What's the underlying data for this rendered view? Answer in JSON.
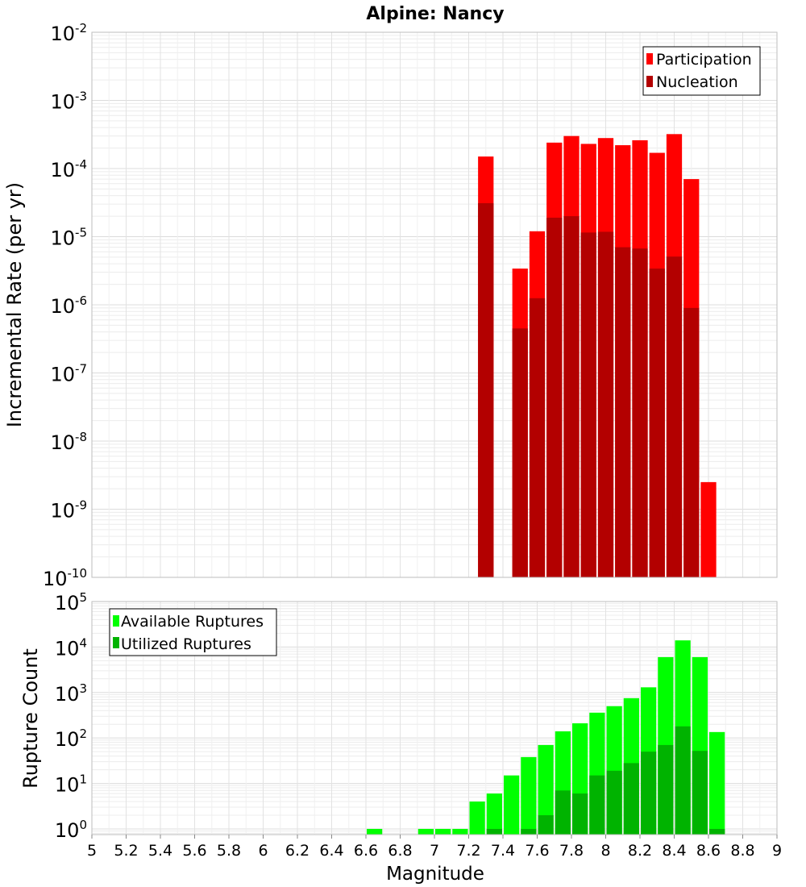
{
  "chart_data": [
    {
      "type": "bar",
      "title": "Alpine: Nancy",
      "ylabel": "Incremental Rate (per yr)",
      "y_scale": "log",
      "ylim": [
        1e-10,
        0.01
      ],
      "y_ticks": [
        {
          "base": "10",
          "exp": "-2"
        },
        {
          "base": "10",
          "exp": "-3"
        },
        {
          "base": "10",
          "exp": "-4"
        },
        {
          "base": "10",
          "exp": "-5"
        },
        {
          "base": "10",
          "exp": "-6"
        },
        {
          "base": "10",
          "exp": "-7"
        },
        {
          "base": "10",
          "exp": "-8"
        },
        {
          "base": "10",
          "exp": "-9"
        },
        {
          "base": "10",
          "exp": "-10"
        }
      ],
      "grid": true,
      "legend_position": "top-right",
      "x": [
        7.3,
        7.5,
        7.6,
        7.7,
        7.8,
        7.9,
        8.0,
        8.1,
        8.2,
        8.3,
        8.4,
        8.5,
        8.6
      ],
      "series": [
        {
          "name": "Participation",
          "color": "#ff0000",
          "values": [
            0.00015,
            3.4e-06,
            1.2e-05,
            0.00024,
            0.0003,
            0.00023,
            0.00028,
            0.00022,
            0.00026,
            0.00017,
            0.00032,
            7e-05,
            2.5e-09
          ]
        },
        {
          "name": "Nucleation",
          "color": "#b30000",
          "values": [
            3.1e-05,
            4.5e-07,
            1.25e-06,
            1.9e-05,
            2e-05,
            1.15e-05,
            1.18e-05,
            7e-06,
            6.7e-06,
            3.4e-06,
            5.1e-06,
            9e-07,
            null
          ]
        }
      ]
    },
    {
      "type": "bar",
      "ylabel": "Rupture Count",
      "xlabel": "Magnitude",
      "y_scale": "log",
      "ylim": [
        0.75,
        100000
      ],
      "y_ticks": [
        {
          "base": "10",
          "exp": "5"
        },
        {
          "base": "10",
          "exp": "4"
        },
        {
          "base": "10",
          "exp": "3"
        },
        {
          "base": "10",
          "exp": "2"
        },
        {
          "base": "10",
          "exp": "1"
        },
        {
          "base": "10",
          "exp": "0"
        }
      ],
      "xlim": [
        5,
        9
      ],
      "x_ticks": [
        "5",
        "5.2",
        "5.4",
        "5.6",
        "5.8",
        "6",
        "6.2",
        "6.4",
        "6.6",
        "6.8",
        "7",
        "7.2",
        "7.4",
        "7.6",
        "7.8",
        "8",
        "8.2",
        "8.4",
        "8.6",
        "8.8",
        "9"
      ],
      "grid": true,
      "legend_position": "top-left",
      "x": [
        6.65,
        6.95,
        7.05,
        7.15,
        7.25,
        7.35,
        7.45,
        7.55,
        7.65,
        7.75,
        7.85,
        7.95,
        8.05,
        8.15,
        8.25,
        8.35,
        8.45,
        8.55,
        8.65
      ],
      "series": [
        {
          "name": "Available Ruptures",
          "color": "#00ff00",
          "values": [
            1,
            1,
            1,
            1,
            4,
            6,
            15,
            38,
            70,
            140,
            210,
            360,
            500,
            750,
            1300,
            6000,
            14000,
            6000,
            135
          ]
        },
        {
          "name": "Utilized Ruptures",
          "color": "#00b300",
          "values": [
            null,
            null,
            null,
            null,
            null,
            1,
            null,
            1,
            2,
            7,
            6,
            15,
            19,
            28,
            50,
            70,
            180,
            52,
            1
          ]
        }
      ]
    }
  ]
}
